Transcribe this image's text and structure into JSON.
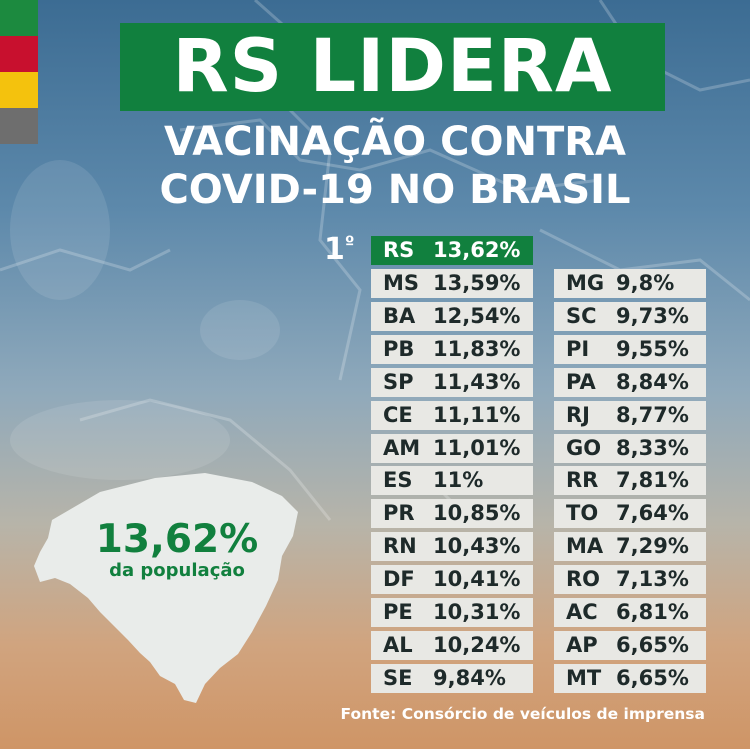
{
  "title": "RS LIDERA",
  "subtitle_line1": "VACINAÇÃO CONTRA",
  "subtitle_line2": "COVID-19 NO BRASIL",
  "rank_label": "1",
  "rank_suffix": "º",
  "leader": {
    "uf": "RS",
    "pct": "13,62%"
  },
  "left_column": [
    {
      "uf": "MS",
      "pct": "13,59%"
    },
    {
      "uf": "BA",
      "pct": "12,54%"
    },
    {
      "uf": "PB",
      "pct": "11,83%"
    },
    {
      "uf": "SP",
      "pct": "11,43%"
    },
    {
      "uf": "CE",
      "pct": "11,11%"
    },
    {
      "uf": "AM",
      "pct": "11,01%"
    },
    {
      "uf": "ES",
      "pct": "11%"
    },
    {
      "uf": "PR",
      "pct": "10,85%"
    },
    {
      "uf": "RN",
      "pct": "10,43%"
    },
    {
      "uf": "DF",
      "pct": "10,41%"
    },
    {
      "uf": "PE",
      "pct": "10,31%"
    },
    {
      "uf": "AL",
      "pct": "10,24%"
    },
    {
      "uf": "SE",
      "pct": "9,84%"
    }
  ],
  "right_column": [
    {
      "uf": "MG",
      "pct": "9,8%"
    },
    {
      "uf": "SC",
      "pct": "9,73%"
    },
    {
      "uf": "PI",
      "pct": "9,55%"
    },
    {
      "uf": "PA",
      "pct": "8,84%"
    },
    {
      "uf": "RJ",
      "pct": "8,77%"
    },
    {
      "uf": "GO",
      "pct": "8,33%"
    },
    {
      "uf": "RR",
      "pct": "7,81%"
    },
    {
      "uf": "TO",
      "pct": "7,64%"
    },
    {
      "uf": "MA",
      "pct": "7,29%"
    },
    {
      "uf": "RO",
      "pct": "7,13%"
    },
    {
      "uf": "AC",
      "pct": "6,81%"
    },
    {
      "uf": "AP",
      "pct": "6,65%"
    },
    {
      "uf": "MT",
      "pct": "6,65%"
    }
  ],
  "highlight": {
    "value": "13,62%",
    "label": "da população"
  },
  "source": "Fonte: Consórcio de veículos de imprensa",
  "colors": {
    "green": "#11803e",
    "flag_green": "#1c8a3f",
    "flag_red": "#c8102e",
    "flag_yellow": "#f4c20d",
    "flag_gray": "#6e6e6e",
    "row_bg": "#e8e8e4"
  }
}
